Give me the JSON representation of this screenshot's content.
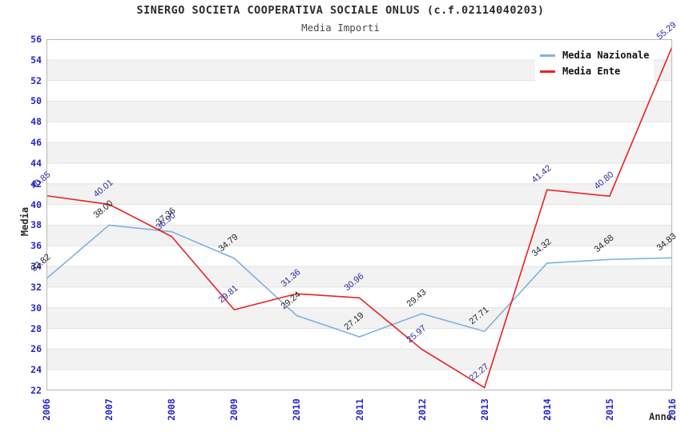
{
  "header": {
    "title": "SINERGO SOCIETA COOPERATIVA SOCIALE ONLUS (c.f.02114040203)",
    "subtitle": "Media Importi"
  },
  "chart_data": {
    "type": "line",
    "title": "SINERGO SOCIETA COOPERATIVA SOCIALE ONLUS (c.f.02114040203)",
    "subtitle": "Media Importi",
    "categories": [
      "2006",
      "2007",
      "2008",
      "2009",
      "2010",
      "2011",
      "2012",
      "2013",
      "2014",
      "2015",
      "2016"
    ],
    "series": [
      {
        "name": "Media Nazionale",
        "color": "#7fb1e0",
        "label_color": "#222222",
        "values": [
          32.82,
          38.0,
          37.36,
          34.79,
          29.24,
          27.19,
          29.43,
          27.71,
          34.32,
          34.68,
          34.83
        ]
      },
      {
        "name": "Media Ente",
        "color": "#ee2020",
        "label_color": "#2929a3",
        "values": [
          40.85,
          40.01,
          36.9,
          29.81,
          31.36,
          30.96,
          25.97,
          22.27,
          41.42,
          40.8,
          55.29
        ]
      }
    ],
    "xlabel": "Anno",
    "ylabel": "Media",
    "ylim": [
      22,
      56
    ],
    "ytick_step": 2,
    "grid": "horizontal-bands",
    "band_colors": [
      "#ffffff",
      "#f2f2f2"
    ],
    "gridline_color": "#e3e3e3",
    "border_color": "#b8b8b8",
    "tick_label_color": "#2626cc",
    "legend_position": "top-right"
  }
}
